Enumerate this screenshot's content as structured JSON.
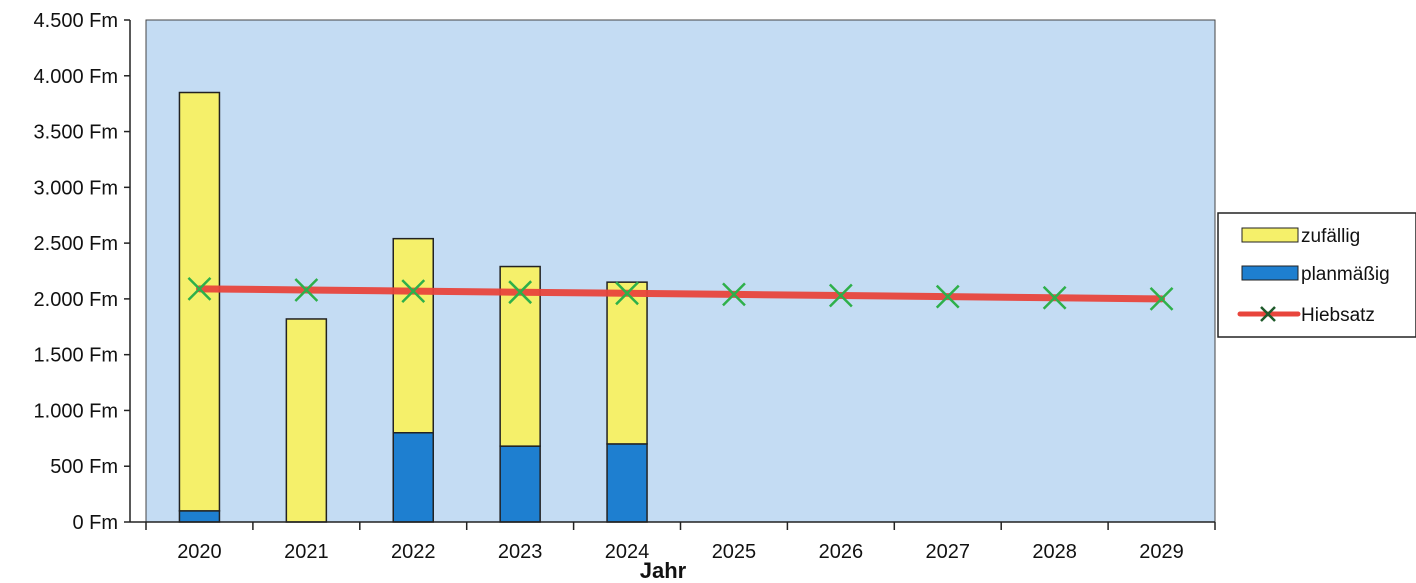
{
  "chart_data": {
    "type": "bar",
    "stacked": true,
    "categories": [
      "2020",
      "2021",
      "2022",
      "2023",
      "2024",
      "2025",
      "2026",
      "2027",
      "2028",
      "2029"
    ],
    "series": [
      {
        "name": "planmäßig",
        "kind": "bar",
        "color": "#1e7fd0",
        "values": [
          100,
          0,
          800,
          680,
          700,
          null,
          null,
          null,
          null,
          null
        ]
      },
      {
        "name": "zufällig",
        "kind": "bar",
        "color": "#f5f06a",
        "values": [
          3750,
          1820,
          1740,
          1610,
          1450,
          null,
          null,
          null,
          null,
          null
        ]
      },
      {
        "name": "Hiebsatz",
        "kind": "line",
        "color": "#e8453c",
        "marker_color": "#2eb04a",
        "values": [
          2090,
          2080,
          2070,
          2060,
          2050,
          2040,
          2030,
          2020,
          2010,
          2000
        ]
      }
    ],
    "y_ticks": [
      "0 Fm",
      "500 Fm",
      "1.000 Fm",
      "1.500 Fm",
      "2.000 Fm",
      "2.500 Fm",
      "3.000 Fm",
      "3.500 Fm",
      "4.000 Fm",
      "4.500 Fm"
    ],
    "ylim": [
      0,
      4500
    ],
    "xlabel": "Jahr",
    "ylabel": "",
    "title": "",
    "grid": false,
    "legend_position": "right",
    "legend": [
      "zufällig",
      "planmäßig",
      "Hiebsatz"
    ],
    "plot_background": "#c4dcf3"
  }
}
